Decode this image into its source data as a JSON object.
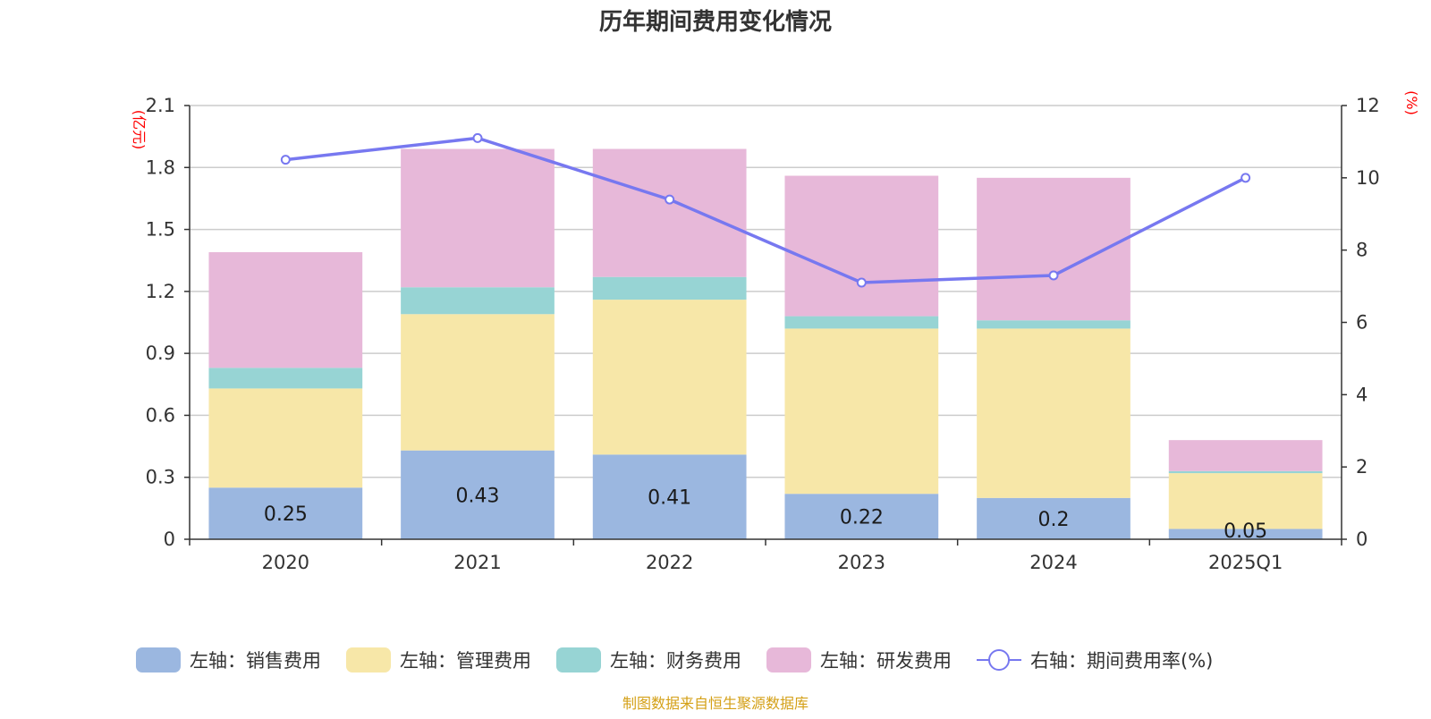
{
  "chart_data": {
    "type": "bar",
    "title": "历年期间费用变化情况",
    "categories": [
      "2020",
      "2021",
      "2022",
      "2023",
      "2024",
      "2025Q1"
    ],
    "left_axis": {
      "unit": "(亿元)",
      "ylim": [
        0,
        2.1
      ],
      "ticks": [
        "0",
        "0.3",
        "0.6",
        "0.9",
        "1.2",
        "1.5",
        "1.8",
        "2.1"
      ],
      "tick_values": [
        0,
        0.3,
        0.6,
        0.9,
        1.2,
        1.5,
        1.8,
        2.1
      ]
    },
    "right_axis": {
      "unit": "(%)",
      "ylim": [
        0,
        12
      ],
      "ticks": [
        "0",
        "2",
        "4",
        "6",
        "8",
        "10",
        "12"
      ],
      "tick_values": [
        0,
        2,
        4,
        6,
        8,
        10,
        12
      ]
    },
    "series": [
      {
        "name": "左轴：销售费用",
        "type": "bar",
        "axis": "left",
        "color": "#9bb7e0",
        "values": [
          0.25,
          0.43,
          0.41,
          0.22,
          0.2,
          0.05
        ],
        "labels": [
          "0.25",
          "0.43",
          "0.41",
          "0.22",
          "0.2",
          "0.05"
        ]
      },
      {
        "name": "左轴：管理费用",
        "type": "bar",
        "axis": "left",
        "color": "#f7e7a8",
        "values": [
          0.48,
          0.66,
          0.75,
          0.8,
          0.82,
          0.27
        ]
      },
      {
        "name": "左轴：财务费用",
        "type": "bar",
        "axis": "left",
        "color": "#97d4d4",
        "values": [
          0.1,
          0.13,
          0.11,
          0.06,
          0.04,
          0.01
        ]
      },
      {
        "name": "左轴：研发费用",
        "type": "bar",
        "axis": "left",
        "color": "#e7b8d9",
        "values": [
          0.56,
          0.67,
          0.62,
          0.68,
          0.69,
          0.15
        ]
      },
      {
        "name": "右轴：期间费用率(%)",
        "type": "line",
        "axis": "right",
        "color": "#7778f0",
        "values": [
          10.5,
          11.1,
          9.4,
          7.1,
          7.3,
          10.0
        ]
      }
    ],
    "source": "制图数据来自恒生聚源数据库"
  }
}
